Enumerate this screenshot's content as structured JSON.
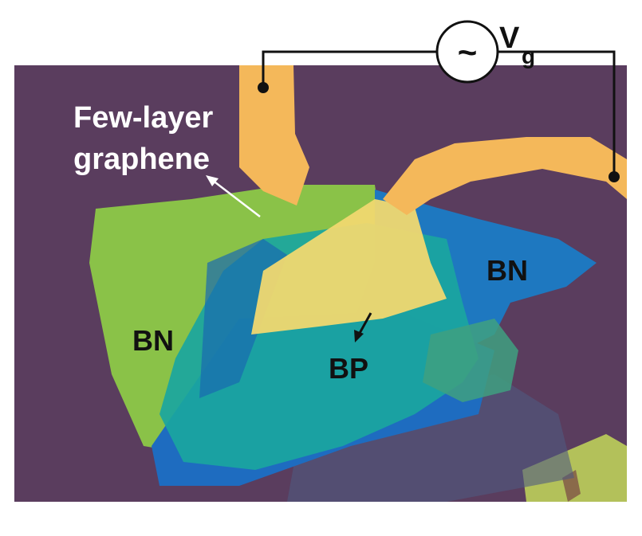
{
  "labels": {
    "few_layer_line1": "Few-layer",
    "few_layer_line2": "graphene",
    "bn_left": "BN",
    "bn_right": "BN",
    "bp": "BP",
    "voltage_main": "V",
    "voltage_sub": "g",
    "ac_symbol": "~"
  },
  "colors": {
    "substrate": "#5a3d5e",
    "electrode": "#f4b85a",
    "bn_left": "#8ac248",
    "bn_right": "#1e78c0",
    "bp": "#1aa6a0",
    "graphene_overlap": "#f0d870",
    "label_light": "#ffffff",
    "label_dark": "#111111"
  }
}
